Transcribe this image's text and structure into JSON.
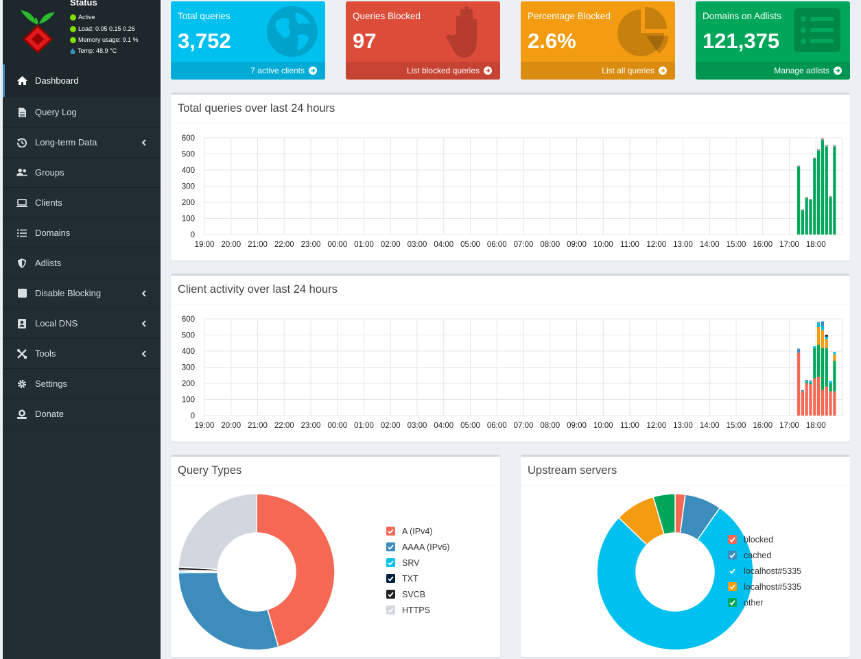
{
  "sidebar": {
    "status": {
      "title": "Status",
      "active": "Active",
      "load": "Load: 0.05 0.15 0.26",
      "memory": "Memory usage: 9.1 %",
      "temp": "Temp: 48.9 °C"
    },
    "items": [
      {
        "label": "Dashboard",
        "icon": "home-icon"
      },
      {
        "label": "Query Log",
        "icon": "file-icon"
      },
      {
        "label": "Long-term Data",
        "icon": "history-icon"
      },
      {
        "label": "Groups",
        "icon": "users-icon"
      },
      {
        "label": "Clients",
        "icon": "laptop-icon"
      },
      {
        "label": "Domains",
        "icon": "list-icon"
      },
      {
        "label": "Adlists",
        "icon": "shield-icon"
      },
      {
        "label": "Disable Blocking",
        "icon": "stop-icon"
      },
      {
        "label": "Local DNS",
        "icon": "address-book-icon"
      },
      {
        "label": "Tools",
        "icon": "tools-icon"
      },
      {
        "label": "Settings",
        "icon": "gear-icon"
      },
      {
        "label": "Donate",
        "icon": "donate-icon"
      }
    ]
  },
  "stats": {
    "total_queries": {
      "label": "Total queries",
      "value": "3,752",
      "footer": "7 active clients",
      "color": "#00c0ef"
    },
    "queries_blocked": {
      "label": "Queries Blocked",
      "value": "97",
      "footer": "List blocked queries",
      "color": "#dd4b39"
    },
    "percentage_blocked": {
      "label": "Percentage Blocked",
      "value": "2.6%",
      "footer": "List all queries",
      "color": "#f39c12"
    },
    "domains_adlists": {
      "label": "Domains on Adlists",
      "value": "121,375",
      "footer": "Manage adlists",
      "color": "#00a65a"
    }
  },
  "panels": {
    "queries_title": "Total queries over last 24 hours",
    "clients_title": "Client activity over last 24 hours",
    "query_types_title": "Query Types",
    "upstream_title": "Upstream servers"
  },
  "chart_data": [
    {
      "type": "bar",
      "title": "Total queries over last 24 hours",
      "x_ticks": [
        "19:00",
        "20:00",
        "21:00",
        "22:00",
        "23:00",
        "00:00",
        "01:00",
        "02:00",
        "03:00",
        "04:00",
        "05:00",
        "06:00",
        "07:00",
        "08:00",
        "09:00",
        "10:00",
        "11:00",
        "12:00",
        "13:00",
        "14:00",
        "15:00",
        "16:00",
        "17:00",
        "18:00"
      ],
      "y_ticks": [
        0,
        100,
        200,
        300,
        400,
        500,
        600
      ],
      "ylim": [
        0,
        600
      ],
      "grid": true,
      "bar_x_hours": [
        22.35,
        22.5,
        22.65,
        22.8,
        22.95,
        23.1,
        23.25,
        23.4,
        23.55,
        23.7
      ],
      "series": [
        {
          "color": "#00a65a",
          "values": [
            420,
            150,
            225,
            215,
            470,
            520,
            585,
            545,
            230,
            545
          ]
        },
        {
          "color": "#999999",
          "values": [
            8,
            6,
            8,
            6,
            8,
            10,
            12,
            10,
            8,
            10
          ]
        }
      ]
    },
    {
      "type": "bar",
      "title": "Client activity over last 24 hours",
      "x_ticks": [
        "19:00",
        "20:00",
        "21:00",
        "22:00",
        "23:00",
        "00:00",
        "01:00",
        "02:00",
        "03:00",
        "04:00",
        "05:00",
        "06:00",
        "07:00",
        "08:00",
        "09:00",
        "10:00",
        "11:00",
        "12:00",
        "13:00",
        "14:00",
        "15:00",
        "16:00",
        "17:00",
        "18:00"
      ],
      "y_ticks": [
        0,
        100,
        200,
        300,
        400,
        500,
        600
      ],
      "ylim": [
        0,
        600
      ],
      "grid": true,
      "bar_x_hours": [
        22.35,
        22.5,
        22.65,
        22.8,
        22.95,
        23.1,
        23.25,
        23.4,
        23.55,
        23.7
      ],
      "series": [
        {
          "color": "#f56954",
          "values": [
            390,
            150,
            200,
            195,
            230,
            240,
            160,
            180,
            150,
            150
          ]
        },
        {
          "color": "#00a65a",
          "values": [
            0,
            0,
            8,
            10,
            190,
            200,
            260,
            240,
            50,
            190
          ]
        },
        {
          "color": "#f39c12",
          "values": [
            0,
            0,
            0,
            0,
            0,
            110,
            110,
            55,
            0,
            40
          ]
        },
        {
          "color": "#00c0ef",
          "values": [
            0,
            0,
            5,
            5,
            10,
            25,
            25,
            15,
            15,
            15
          ]
        },
        {
          "color": "#3c8dbc",
          "values": [
            25,
            8,
            8,
            8,
            0,
            5,
            30,
            0,
            0,
            0
          ]
        },
        {
          "color": "#111111",
          "values": [
            0,
            0,
            0,
            0,
            0,
            0,
            0,
            10,
            0,
            0
          ]
        }
      ]
    },
    {
      "type": "pie",
      "title": "Query Types",
      "labels": [
        "A (IPv4)",
        "AAAA (IPv6)",
        "SRV",
        "TXT",
        "SVCB",
        "HTTPS"
      ],
      "values": [
        45.5,
        29.3,
        0.3,
        0.3,
        0.6,
        24.0
      ],
      "colors": [
        "#f56954",
        "#3c8dbc",
        "#00c0ef",
        "#001f3f",
        "#222222",
        "#d2d6de"
      ]
    },
    {
      "type": "pie",
      "title": "Upstream servers",
      "labels": [
        "blocked",
        "cached",
        "localhost#5335",
        "localhost#5335",
        "other"
      ],
      "values": [
        2.1,
        7.6,
        77.5,
        8.3,
        4.5
      ],
      "colors": [
        "#f56954",
        "#3c8dbc",
        "#00c0ef",
        "#f39c12",
        "#00a65a"
      ]
    }
  ]
}
